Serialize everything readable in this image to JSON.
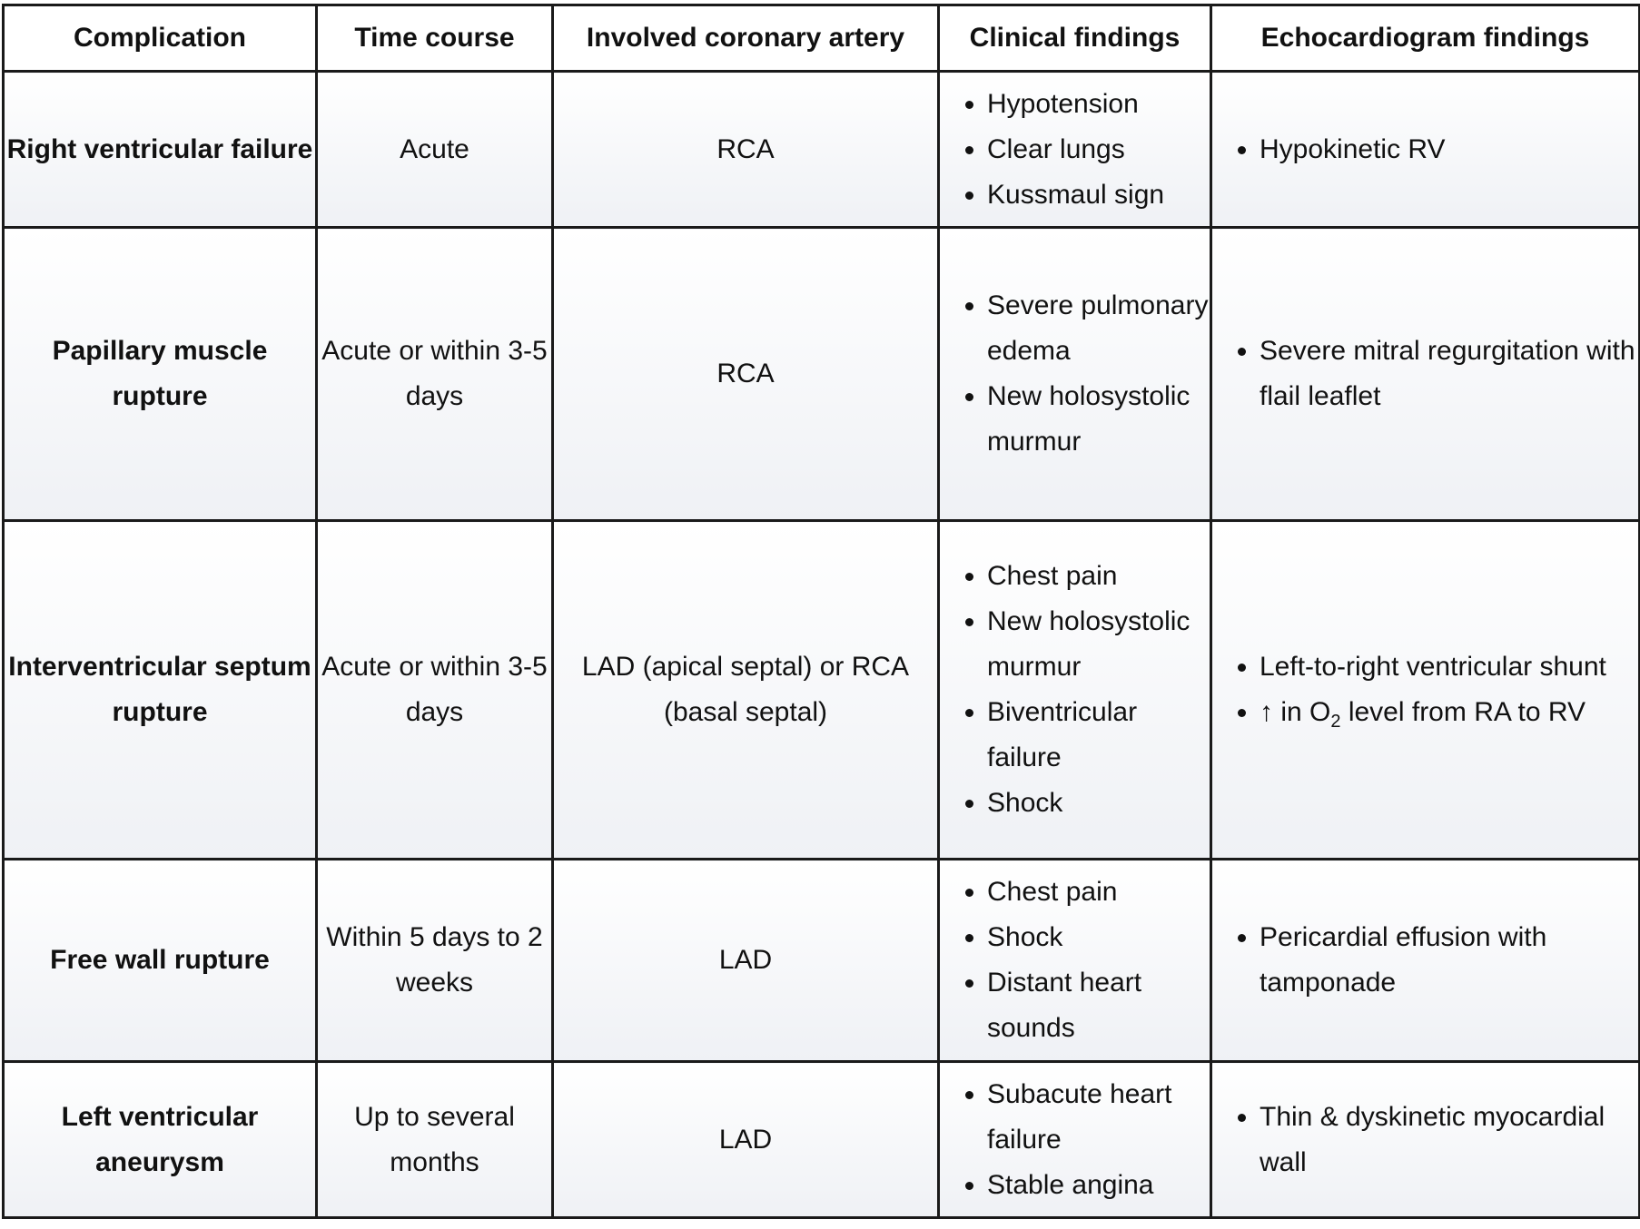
{
  "headers": {
    "complication": "Complication",
    "time_course": "Time course",
    "artery": "Involved coronary artery",
    "clinical": "Clinical findings",
    "echo": "Echocardiogram findings"
  },
  "rows": [
    {
      "complication": "Right ventricular failure",
      "time_course": "Acute",
      "artery": "RCA",
      "clinical": [
        "Hypotension",
        "Clear lungs",
        "Kussmaul sign"
      ],
      "echo": [
        "Hypokinetic RV"
      ]
    },
    {
      "complication": "Papillary muscle rupture",
      "time_course": "Acute or within 3-5 days",
      "artery": "RCA",
      "clinical": [
        "Severe pulmonary edema",
        "New holosystolic murmur"
      ],
      "echo": [
        "Severe mitral regurgitation with flail leaflet"
      ]
    },
    {
      "complication": "Interventricular septum rupture",
      "time_course": "Acute or within 3-5 days",
      "artery": "LAD (apical septal) or RCA (basal septal)",
      "clinical": [
        "Chest pain",
        "New holosystolic murmur",
        "Biventricular failure",
        "Shock"
      ],
      "echo": [
        "Left-to-right ventricular shunt"
      ],
      "echo_o2": {
        "prefix": "↑ in O",
        "subscript": "2",
        "suffix": " level from RA to RV"
      }
    },
    {
      "complication": "Free wall rupture",
      "time_course": "Within 5 days to 2 weeks",
      "artery": "LAD",
      "clinical": [
        "Chest pain",
        "Shock",
        "Distant heart sounds"
      ],
      "echo": [
        "Pericardial effusion with tamponade"
      ]
    },
    {
      "complication": "Left ventricular aneurysm",
      "time_course": "Up to several months",
      "artery": "LAD",
      "clinical": [
        "Subacute heart failure",
        "Stable angina"
      ],
      "echo": [
        "Thin & dyskinetic myocardial wall"
      ]
    }
  ]
}
